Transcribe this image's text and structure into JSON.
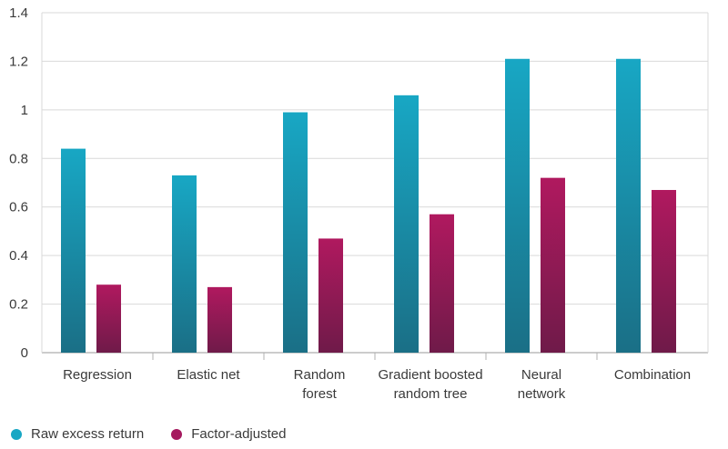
{
  "chart_data": {
    "type": "bar",
    "categories": [
      [
        "Regression"
      ],
      [
        "Elastic net"
      ],
      [
        "Random",
        "forest"
      ],
      [
        "Gradient boosted",
        "random tree"
      ],
      [
        "Neural",
        "network"
      ],
      [
        "Combination"
      ]
    ],
    "series": [
      {
        "name": "Raw excess return",
        "values": [
          0.84,
          0.73,
          0.99,
          1.06,
          1.21,
          1.21
        ],
        "color_top": "#18a7c4",
        "color_bottom": "#1a6f86"
      },
      {
        "name": "Factor-adjusted",
        "values": [
          0.28,
          0.27,
          0.47,
          0.57,
          0.72,
          0.67
        ],
        "color_top": "#b0195f",
        "color_bottom": "#6f1a49"
      }
    ],
    "ylim": [
      0,
      1.4
    ],
    "yticks": [
      "0",
      "0.2",
      "0.4",
      "0.6",
      "0.8",
      "1",
      "1.2",
      "1.4"
    ],
    "ytick_values": [
      0,
      0.2,
      0.4,
      0.6,
      0.8,
      1,
      1.2,
      1.4
    ],
    "grid": true,
    "legend_position": "bottom-left",
    "title": "",
    "xlabel": "",
    "ylabel": ""
  },
  "legend": {
    "raw_label": "Raw excess return",
    "adj_label": "Factor-adjusted",
    "raw_color": "#18a7c4",
    "adj_color": "#a51a5f"
  }
}
